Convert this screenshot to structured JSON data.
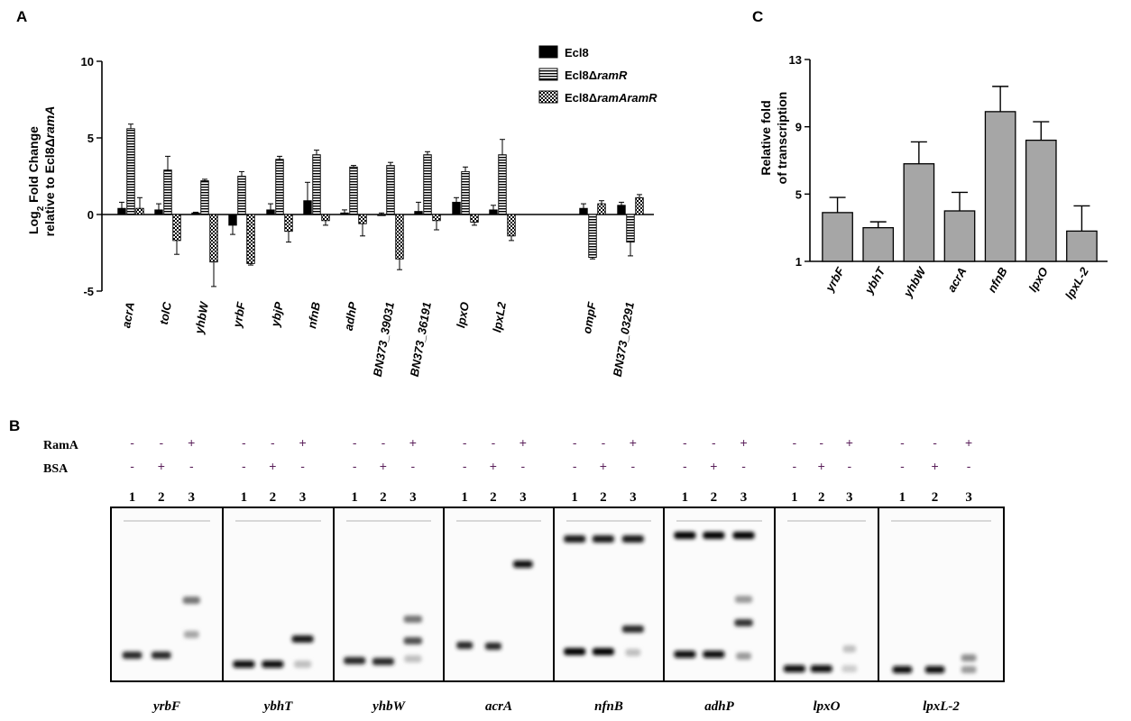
{
  "panels": {
    "a": "A",
    "b": "B",
    "c": "C"
  },
  "chart_data": [
    {
      "panel": "A",
      "type": "bar",
      "ylabel_line1": "Log",
      "ylabel_sub": "2",
      "ylabel_line1_rest": " Fold Change",
      "ylabel_line2_pre": "relative to Ecl8Δ",
      "ylabel_line2_ital": "ramA",
      "ylim": [
        -5,
        10
      ],
      "yticks": [
        "-5",
        "0",
        "5",
        "10"
      ],
      "legend_position": "top-right",
      "legend": [
        {
          "pre": "Ecl8",
          "ital": "",
          "pattern": "solid"
        },
        {
          "pre": "Ecl8Δ",
          "ital": "ramR",
          "pattern": "hstripe"
        },
        {
          "pre": "Ecl8Δ",
          "ital": "ramAramR",
          "pattern": "check"
        }
      ],
      "categories": [
        "acrA",
        "tolC",
        "yhbW",
        "yrbF",
        "ybjP",
        "nfnB",
        "adhP",
        "BN373_39031",
        "BN373_36191",
        "lpxO",
        "lpxL2",
        "ompF",
        "BN373_03291"
      ],
      "series": [
        {
          "name": "Ecl8",
          "values": [
            0.4,
            0.3,
            0.1,
            -0.7,
            0.3,
            0.9,
            0.1,
            0.0,
            0.2,
            0.8,
            0.3,
            0.4,
            0.6
          ],
          "errors": [
            0.4,
            0.4,
            0.05,
            0.6,
            0.4,
            1.2,
            0.2,
            0.1,
            0.6,
            0.3,
            0.3,
            0.3,
            0.2
          ]
        },
        {
          "name": "Ecl8ΔramR",
          "values": [
            5.6,
            2.9,
            2.2,
            2.5,
            3.6,
            3.9,
            3.1,
            3.2,
            3.9,
            2.8,
            3.9,
            -2.8,
            -1.8
          ],
          "errors": [
            0.3,
            0.9,
            0.1,
            0.3,
            0.2,
            0.3,
            0.1,
            0.2,
            0.2,
            0.3,
            1.0,
            0.1,
            0.9
          ]
        },
        {
          "name": "Ecl8ΔramAramR",
          "values": [
            0.4,
            -1.7,
            -3.1,
            -3.2,
            -1.1,
            -0.4,
            -0.6,
            -2.9,
            -0.4,
            -0.5,
            -1.4,
            0.7,
            1.1
          ],
          "errors": [
            0.7,
            0.9,
            1.6,
            0.1,
            0.7,
            0.3,
            0.8,
            0.7,
            0.6,
            0.2,
            0.3,
            0.2,
            0.2
          ]
        }
      ]
    },
    {
      "panel": "C",
      "type": "bar",
      "ylabel_line1": "Relative fold",
      "ylabel_line2": "of transcription",
      "ylim": [
        1,
        13
      ],
      "yticks": [
        "1",
        "5",
        "9",
        "13"
      ],
      "categories": [
        "yrbF",
        "ybhT",
        "yhbW",
        "acrA",
        "nfnB",
        "lpxO",
        "lpxL-2"
      ],
      "values": [
        3.9,
        3.0,
        6.8,
        4.0,
        9.9,
        8.2,
        2.8
      ],
      "errors": [
        0.9,
        0.35,
        1.3,
        1.1,
        1.5,
        1.1,
        1.5
      ]
    }
  ],
  "gel": {
    "row_labels": [
      "RamA",
      "BSA"
    ],
    "ramA_signs": [
      "-",
      "-",
      "+"
    ],
    "bsa_signs": [
      "-",
      "+",
      "-"
    ],
    "lanes": [
      "1",
      "2",
      "3"
    ],
    "genes": [
      "yrbF",
      "ybhT",
      "yhbW",
      "acrA",
      "nfnB",
      "adhP",
      "lpxO",
      "lpxL-2"
    ]
  }
}
